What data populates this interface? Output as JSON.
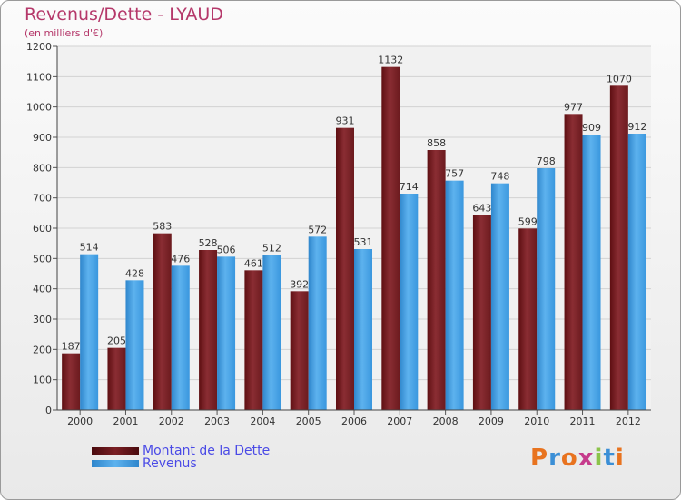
{
  "title": "Revenus/Dette - LYAUD",
  "subtitle": "(en milliers d'€)",
  "logo": {
    "text": "Proxiti",
    "colors": [
      "#e8731f",
      "#3b8fd6",
      "#e8731f",
      "#c63b8c",
      "#8bc34a",
      "#3b8fd6",
      "#e8731f"
    ]
  },
  "legend": [
    {
      "label": "Montant de la Dette",
      "color": "#6b1414"
    },
    {
      "label": "Revenus",
      "color": "#3a97de"
    }
  ],
  "chart_data": {
    "type": "bar",
    "title": "Revenus/Dette - LYAUD",
    "subtitle": "(en milliers d'€)",
    "categories": [
      "2000",
      "2001",
      "2002",
      "2003",
      "2004",
      "2005",
      "2006",
      "2007",
      "2008",
      "2009",
      "2010",
      "2011",
      "2012"
    ],
    "series": [
      {
        "name": "Montant de la Dette",
        "color": "#7a1f24",
        "values": [
          187,
          205,
          583,
          528,
          461,
          392,
          931,
          1132,
          858,
          643,
          599,
          977,
          1070
        ]
      },
      {
        "name": "Revenus",
        "color": "#3a97de",
        "values": [
          514,
          428,
          476,
          506,
          512,
          572,
          531,
          714,
          757,
          748,
          798,
          909,
          912
        ]
      }
    ],
    "ylim": [
      0,
      1200
    ],
    "yticks": [
      0,
      100,
      200,
      300,
      400,
      500,
      600,
      700,
      800,
      900,
      1000,
      1100,
      1200
    ],
    "grid": true,
    "legend_position": "bottom-left"
  }
}
